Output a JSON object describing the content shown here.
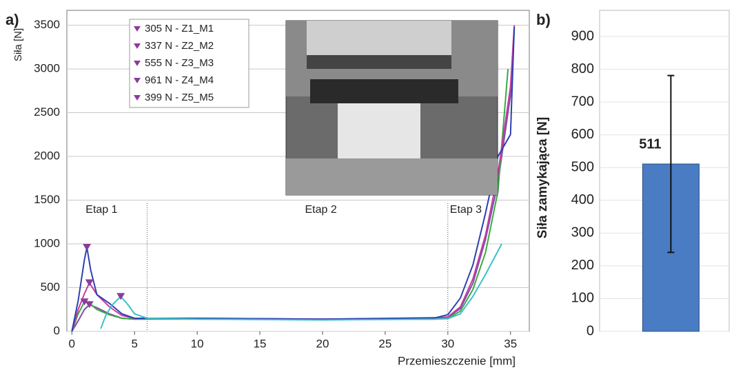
{
  "chart_data": [
    {
      "type": "line",
      "panel_label": "a)",
      "x_label": "Przemieszczenie [mm]",
      "y_label": "Siła [N]",
      "xlim": [
        -0.4,
        36.5
      ],
      "ylim": [
        0,
        3670
      ],
      "xticks": [
        0,
        5,
        10,
        15,
        20,
        25,
        30,
        35
      ],
      "yticks": [
        0,
        500,
        1000,
        1500,
        2000,
        2500,
        3000,
        3500
      ],
      "grid": true,
      "legend": "upper left",
      "marker_color": "#8a3d9a",
      "stages": [
        "Etap 1",
        "Etap 2",
        "Etap 3"
      ],
      "dividers": [
        6,
        30
      ],
      "series": [
        {
          "name": "305 N - Z1_M1",
          "color": "#7b4fa8",
          "peak": [
            1.4,
            305
          ],
          "x": [
            0,
            0.5,
            1,
            1.4,
            2,
            3,
            4,
            5,
            10,
            20,
            29,
            30,
            31,
            32,
            33,
            34,
            35,
            35.3
          ],
          "values": [
            0,
            120,
            250,
            305,
            270,
            200,
            150,
            140,
            145,
            140,
            145,
            160,
            260,
            550,
            1050,
            1700,
            2700,
            3450
          ]
        },
        {
          "name": "337 N - Z2_M2",
          "color": "#3aa845",
          "peak": [
            1.0,
            337
          ],
          "x": [
            0,
            0.5,
            1,
            1.5,
            2,
            3,
            4,
            5,
            10,
            20,
            29,
            30,
            31,
            32,
            33,
            34,
            34.8
          ],
          "values": [
            0,
            200,
            337,
            310,
            250,
            190,
            150,
            140,
            140,
            135,
            140,
            150,
            230,
            480,
            900,
            1600,
            3000
          ]
        },
        {
          "name": "555 N - Z3_M3",
          "color": "#c93aa0",
          "peak": [
            1.4,
            555
          ],
          "x": [
            0,
            0.5,
            1,
            1.4,
            2,
            3,
            4,
            5,
            10,
            20,
            29,
            30,
            31,
            32,
            33,
            34,
            35,
            35.3
          ],
          "values": [
            0,
            250,
            430,
            555,
            420,
            280,
            180,
            150,
            150,
            140,
            150,
            165,
            280,
            600,
            1100,
            1800,
            2800,
            3500
          ]
        },
        {
          "name": "961 N - Z4_M4",
          "color": "#2f3fb0",
          "peak": [
            1.2,
            961
          ],
          "x": [
            0,
            0.5,
            1,
            1.2,
            1.5,
            2,
            3,
            4,
            5,
            10,
            20,
            29,
            30,
            31,
            32,
            33,
            34,
            35,
            35.3
          ],
          "values": [
            0,
            350,
            820,
            961,
            700,
            420,
            320,
            200,
            150,
            150,
            140,
            155,
            190,
            380,
            760,
            1350,
            2000,
            2250,
            3480
          ]
        },
        {
          "name": "399 N - Z5_M5",
          "color": "#3cc0c8",
          "peak": [
            3.9,
            399
          ],
          "x": [
            2.3,
            2.7,
            3.2,
            3.9,
            4.5,
            5,
            6,
            10,
            20,
            29,
            30,
            31,
            32,
            33,
            34.3
          ],
          "values": [
            30,
            180,
            300,
            399,
            300,
            200,
            150,
            140,
            130,
            140,
            145,
            200,
            400,
            650,
            1000
          ]
        }
      ]
    },
    {
      "type": "bar",
      "panel_label": "b)",
      "y_label": "Siła zamykająca [N]",
      "categories": [
        null
      ],
      "values": [
        511
      ],
      "errors": [
        270
      ],
      "color": "#4a7cc4",
      "ylim": [
        0,
        980
      ],
      "yticks": [
        0,
        100,
        200,
        300,
        400,
        500,
        600,
        700,
        800,
        900
      ],
      "grid": true
    }
  ]
}
